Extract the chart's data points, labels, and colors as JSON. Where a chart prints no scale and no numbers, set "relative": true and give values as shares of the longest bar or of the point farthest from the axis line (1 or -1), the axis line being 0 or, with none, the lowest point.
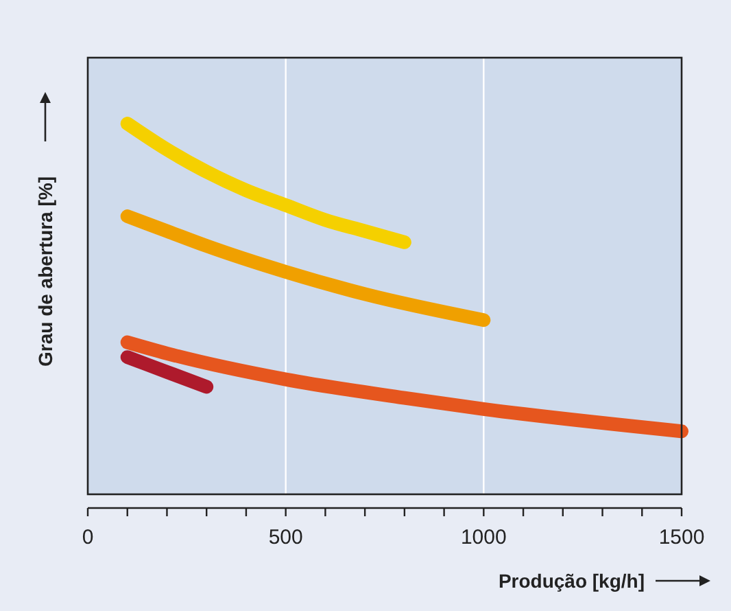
{
  "chart_data": {
    "type": "line",
    "relative": true,
    "xlabel": "Produção [kg/h]",
    "ylabel": "Grau de abertura [%]",
    "xlim": [
      0,
      1500
    ],
    "xticks": [
      0,
      {
        "value": 100,
        "label": null
      },
      {
        "value": 200,
        "label": null
      },
      {
        "value": 300,
        "label": null
      },
      {
        "value": 400,
        "label": null
      },
      500,
      {
        "value": 600,
        "label": null
      },
      {
        "value": 700,
        "label": null
      },
      {
        "value": 800,
        "label": null
      },
      {
        "value": 900,
        "label": null
      },
      1000,
      {
        "value": 1100,
        "label": null
      },
      {
        "value": 1200,
        "label": null
      },
      {
        "value": 1300,
        "label": null
      },
      {
        "value": 1400,
        "label": null
      },
      1500
    ],
    "grid": "x",
    "marker": "none",
    "line_style": "solid",
    "series": [
      {
        "color": "#f5d000",
        "x": [
          100,
          200,
          300,
          400,
          500,
          600,
          700,
          800
        ],
        "values": [
          1.0,
          0.93,
          0.87,
          0.82,
          0.78,
          0.74,
          0.71,
          0.68
        ]
      },
      {
        "color": "#f0a000",
        "x": [
          100,
          200,
          300,
          500,
          700,
          1000
        ],
        "values": [
          0.75,
          0.71,
          0.67,
          0.6,
          0.54,
          0.47
        ]
      },
      {
        "color": "#e6561e",
        "x": [
          100,
          200,
          500,
          800,
          1000,
          1500
        ],
        "values": [
          0.41,
          0.38,
          0.31,
          0.26,
          0.23,
          0.17
        ]
      },
      {
        "color": "#ae1a2c",
        "x": [
          100,
          200,
          300
        ],
        "values": [
          0.37,
          0.33,
          0.29
        ]
      }
    ]
  }
}
